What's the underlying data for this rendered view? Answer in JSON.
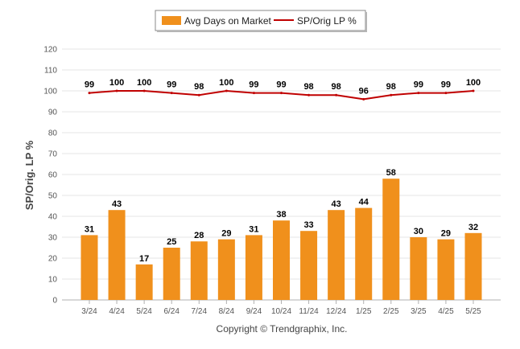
{
  "chart_data": {
    "type": "bar",
    "categories": [
      "3/24",
      "4/24",
      "5/24",
      "6/24",
      "7/24",
      "8/24",
      "9/24",
      "10/24",
      "11/24",
      "12/24",
      "1/25",
      "2/25",
      "3/25",
      "4/25",
      "5/25"
    ],
    "series": [
      {
        "name": "Avg Days on Market",
        "type": "bar",
        "color": "#F0901C",
        "values": [
          31,
          43,
          17,
          25,
          28,
          29,
          31,
          38,
          33,
          43,
          44,
          58,
          30,
          29,
          32
        ]
      },
      {
        "name": "SP/Orig LP %",
        "type": "line",
        "color": "#C00000",
        "values": [
          99,
          100,
          100,
          99,
          98,
          100,
          99,
          99,
          98,
          98,
          96,
          98,
          99,
          99,
          100
        ]
      }
    ],
    "title": "",
    "xlabel": "",
    "ylabel": "SP/Orig. LP %",
    "ylim": [
      0,
      120
    ],
    "yticks": [
      0,
      10,
      20,
      30,
      40,
      50,
      60,
      70,
      80,
      90,
      100,
      110,
      120
    ],
    "grid": true,
    "legend_position": "top-center"
  },
  "footer": {
    "copyright": "Copyright © Trendgraphix, Inc."
  }
}
